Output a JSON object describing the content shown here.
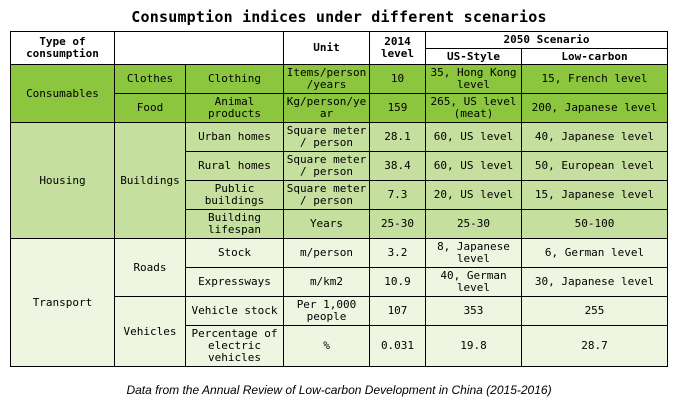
{
  "title": "Consumption indices under different scenarios",
  "header": {
    "type": "Type of consumption",
    "unit": "Unit",
    "y2014": "2014 level",
    "scenario": "2050 Scenario",
    "us_style": "US-Style",
    "low_carbon": "Low-carbon"
  },
  "groups": {
    "consumables": "Consumables",
    "housing": "Housing",
    "transport": "Transport"
  },
  "subgroups": {
    "clothes": "Clothes",
    "food": "Food",
    "buildings": "Buildings",
    "roads": "Roads",
    "vehicles": "Vehicles"
  },
  "rows": [
    {
      "item": "Clothing",
      "unit": "Items/person /years",
      "v2014": "10",
      "us": "35, Hong Kong level",
      "lc": "15, French level"
    },
    {
      "item": "Animal products",
      "unit": "Kg/person/ye ar",
      "v2014": "159",
      "us": "265, US level (meat)",
      "lc": "200, Japanese level"
    },
    {
      "item": "Urban homes",
      "unit": "Square meter / person",
      "v2014": "28.1",
      "us": "60, US level",
      "lc": "40, Japanese level"
    },
    {
      "item": "Rural homes",
      "unit": "Square meter / person",
      "v2014": "38.4",
      "us": "60, US level",
      "lc": "50, European level"
    },
    {
      "item": "Public buildings",
      "unit": "Square meter / person",
      "v2014": "7.3",
      "us": "20, US level",
      "lc": "15, Japanese level"
    },
    {
      "item": "Building lifespan",
      "unit": "Years",
      "v2014": "25-30",
      "us": "25-30",
      "lc": "50-100"
    },
    {
      "item": "Stock",
      "unit": "m/person",
      "v2014": "3.2",
      "us": "8, Japanese level",
      "lc": "6, German level"
    },
    {
      "item": "Expressways",
      "unit": "m/km2",
      "v2014": "10.9",
      "us": "40, German level",
      "lc": "30, Japanese level"
    },
    {
      "item": "Vehicle stock",
      "unit": "Per 1,000 people",
      "v2014": "107",
      "us": "353",
      "lc": "255"
    },
    {
      "item": "Percentage of electric vehicles",
      "unit": "%",
      "v2014": "0.031",
      "us": "19.8",
      "lc": "28.7"
    }
  ],
  "caption": "Data from the Annual Review of Low-carbon Development in China (2015-2016)",
  "colors": {
    "consumables": "#8cc63f",
    "housing": "#c5df9f",
    "transport": "#eef5e1"
  }
}
